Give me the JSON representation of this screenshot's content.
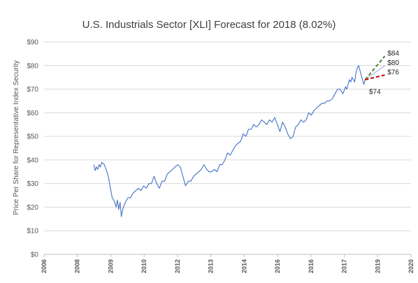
{
  "chart_data": {
    "type": "line",
    "title": "U.S. Industrials Sector [XLI] Forecast for 2018 (8.02%)",
    "xlabel": "",
    "ylabel": "Price Per Share for Representative Index Security",
    "ylim": [
      0,
      90
    ],
    "xlim": [
      2006,
      2020
    ],
    "y_ticks": [
      "$0",
      "$10",
      "$20",
      "$30",
      "$40",
      "$50",
      "$60",
      "$70",
      "$80",
      "$90"
    ],
    "x_ticks": [
      "2006",
      "2008",
      "2009",
      "2010",
      "2012",
      "2013",
      "2014",
      "2016",
      "2016",
      "2017",
      "2019",
      "2020"
    ],
    "grid": "horizontal",
    "legend": "none",
    "colors": {
      "price": "#4472c4",
      "high": "#548235",
      "mid": "#8faadc",
      "low": "#c00000",
      "grid": "#d9d9d9",
      "text": "#595959"
    },
    "series": [
      {
        "key": "price",
        "x": [
          2007.9,
          2007.95,
          2008.0,
          2008.05,
          2008.1,
          2008.15,
          2008.2,
          2008.3,
          2008.4,
          2008.45,
          2008.5,
          2008.6,
          2008.7,
          2008.75,
          2008.8,
          2008.85,
          2008.9,
          2008.95,
          2009.0,
          2009.1,
          2009.2,
          2009.3,
          2009.4,
          2009.5,
          2009.6,
          2009.7,
          2009.8,
          2009.9,
          2010.0,
          2010.1,
          2010.2,
          2010.3,
          2010.4,
          2010.5,
          2010.6,
          2010.7,
          2010.8,
          2010.9,
          2011.0,
          2011.1,
          2011.2,
          2011.3,
          2011.4,
          2011.5,
          2011.6,
          2011.7,
          2011.8,
          2011.9,
          2012.0,
          2012.1,
          2012.2,
          2012.3,
          2012.4,
          2012.5,
          2012.6,
          2012.7,
          2012.8,
          2012.9,
          2013.0,
          2013.1,
          2013.2,
          2013.3,
          2013.4,
          2013.5,
          2013.6,
          2013.7,
          2013.8,
          2013.9,
          2014.0,
          2014.1,
          2014.2,
          2014.3,
          2014.4,
          2014.5,
          2014.6,
          2014.7,
          2014.8,
          2014.9,
          2015.0,
          2015.1,
          2015.2,
          2015.3,
          2015.4,
          2015.5,
          2015.6,
          2015.7,
          2015.8,
          2015.9,
          2016.0,
          2016.1,
          2016.2,
          2016.3,
          2016.4,
          2016.5,
          2016.6,
          2016.7,
          2016.8,
          2016.9,
          2017.0,
          2017.1,
          2017.2,
          2017.3,
          2017.4,
          2017.5,
          2017.55,
          2017.6,
          2017.65,
          2017.7,
          2017.75,
          2017.8,
          2017.85,
          2017.9,
          2017.95,
          2018.0,
          2018.05,
          2018.1,
          2018.15,
          2018.2,
          2018.25
        ],
        "y": [
          38,
          35.5,
          37,
          36,
          38,
          37,
          39,
          38,
          35,
          33,
          30,
          24,
          22,
          20,
          23,
          19,
          22,
          16,
          19,
          22,
          24,
          24,
          26,
          27,
          28,
          27,
          29,
          28,
          30,
          30,
          33,
          30,
          28,
          31,
          31,
          34,
          35,
          36,
          37,
          38,
          37,
          33,
          29,
          31,
          31,
          33,
          34,
          35,
          36,
          38,
          36,
          35,
          35,
          36,
          35,
          38,
          38,
          40,
          43,
          42,
          44,
          46,
          47,
          48,
          51,
          50,
          53,
          53,
          55,
          54,
          55,
          57,
          56,
          55,
          57,
          56,
          58,
          55,
          52,
          56,
          54,
          51,
          49,
          50,
          54,
          55,
          57,
          56,
          57,
          60,
          59,
          61,
          62,
          63,
          64,
          64,
          65,
          65,
          66,
          68,
          70,
          70,
          68,
          71,
          70,
          72,
          74,
          73,
          75,
          74,
          73,
          77,
          79,
          80,
          78,
          76,
          74,
          72,
          74
        ]
      },
      {
        "key": "high",
        "x": [
          2018.25,
          2019.0
        ],
        "y": [
          74,
          84
        ]
      },
      {
        "key": "mid",
        "x": [
          2018.25,
          2019.0
        ],
        "y": [
          74,
          80
        ]
      },
      {
        "key": "low",
        "x": [
          2018.25,
          2019.0
        ],
        "y": [
          74,
          76
        ]
      }
    ],
    "annotations": [
      {
        "text": "$84",
        "x": 2019.1,
        "y": 84.3
      },
      {
        "text": "$80",
        "x": 2019.1,
        "y": 80.3
      },
      {
        "text": "$76",
        "x": 2019.1,
        "y": 76.3
      },
      {
        "text": "$74",
        "x": 2018.4,
        "y": 68.0
      }
    ]
  }
}
